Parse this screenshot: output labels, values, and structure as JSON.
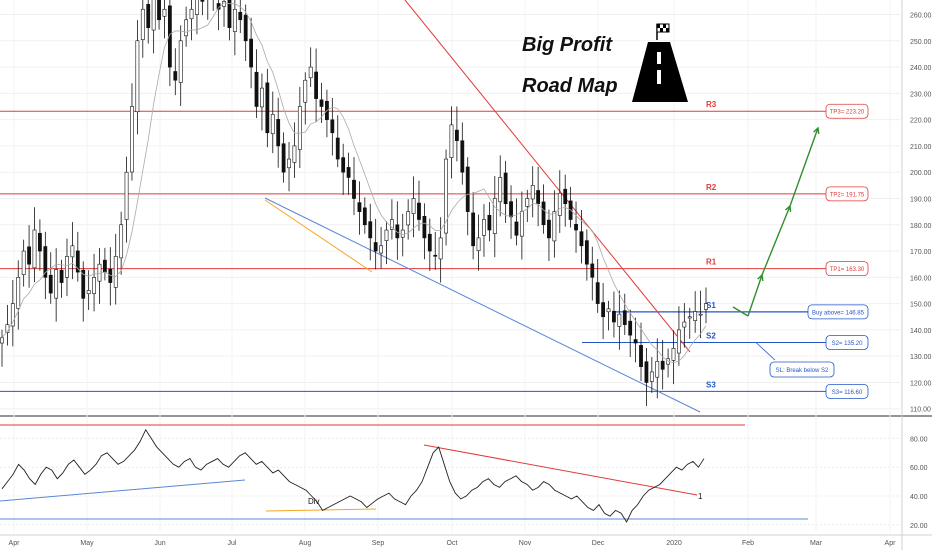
{
  "chart_data": {
    "type": "candlestick",
    "title": "Big Profit",
    "subtitle": "Road Map",
    "x_ticks": [
      "Apr",
      "May",
      "Jun",
      "Jul",
      "Aug",
      "Sep",
      "Oct",
      "Nov",
      "Dec",
      "2020",
      "Feb",
      "Mar",
      "Apr"
    ],
    "price_axis": {
      "ticks": [
        "260.00",
        "250.00",
        "240.00",
        "230.00",
        "220.00",
        "210.00",
        "200.00",
        "190.00",
        "180.00",
        "170.00",
        "160.00",
        "150.00",
        "140.00",
        "130.00",
        "120.00",
        "110.00"
      ],
      "range": [
        108,
        264
      ]
    },
    "rsi_axis": {
      "ticks": [
        "80.00",
        "60.00",
        "40.00",
        "20.00"
      ],
      "range": [
        15,
        90
      ]
    },
    "price_series_close": [
      137,
      142,
      150,
      160,
      170,
      165,
      178,
      170,
      160,
      154,
      163,
      158,
      168,
      172,
      162,
      152,
      155,
      160,
      165,
      162,
      158,
      168,
      180,
      200,
      225,
      250,
      262,
      255,
      268,
      258,
      262,
      240,
      235,
      250,
      258,
      262,
      268,
      265,
      270,
      266,
      262,
      265,
      255,
      262,
      258,
      250,
      240,
      225,
      232,
      215,
      222,
      210,
      200,
      205,
      210,
      225,
      235,
      240,
      228,
      225,
      220,
      215,
      205,
      200,
      198,
      190,
      185,
      180,
      175,
      170,
      172,
      178,
      182,
      175,
      178,
      185,
      190,
      182,
      175,
      170,
      168,
      175,
      205,
      218,
      212,
      200,
      185,
      172,
      175,
      182,
      178,
      190,
      198,
      188,
      183,
      176,
      185,
      190,
      195,
      188,
      180,
      175,
      185,
      192,
      188,
      182,
      178,
      172,
      165,
      160,
      150,
      145,
      148,
      143,
      146,
      142,
      138,
      135,
      126,
      120,
      124,
      128,
      125,
      129,
      133,
      140,
      143,
      145,
      147,
      146,
      150
    ],
    "levels": [
      {
        "label": "R3",
        "price": 223.2,
        "tag": "TP3= 223.20",
        "color": "#e23a3a"
      },
      {
        "label": "R2",
        "price": 191.75,
        "tag": "TP2= 191.75",
        "color": "#e23a3a"
      },
      {
        "label": "R1",
        "price": 163.3,
        "tag": "TP1= 163.30",
        "color": "#e23a3a"
      },
      {
        "label": "S1",
        "price": 146.85,
        "tag": "Buy above= 146.85",
        "color": "#2457c5"
      },
      {
        "label": "S2",
        "price": 135.2,
        "tag": "S2= 135.20",
        "color": "#2457c5"
      },
      {
        "label": "S3",
        "price": 116.6,
        "tag": "S3= 116.60",
        "color": "#2457c5"
      }
    ],
    "annotations": {
      "stop_loss": "SL: Break below S2",
      "divergence": "Div",
      "rsi_marker": "1"
    },
    "rsi_series": [
      45,
      50,
      55,
      62,
      58,
      52,
      48,
      55,
      60,
      58,
      52,
      56,
      62,
      65,
      60,
      55,
      58,
      62,
      68,
      70,
      66,
      62,
      64,
      68,
      72,
      78,
      86,
      80,
      74,
      70,
      66,
      62,
      60,
      64,
      66,
      60,
      58,
      62,
      64,
      66,
      62,
      60,
      64,
      68,
      70,
      66,
      62,
      64,
      60,
      56,
      58,
      54,
      50,
      48,
      46,
      44,
      40,
      36,
      30,
      32,
      34,
      36,
      38,
      40,
      38,
      36,
      32,
      35,
      38,
      40,
      42,
      38,
      36,
      34,
      40,
      44,
      50,
      60,
      70,
      74,
      62,
      50,
      42,
      38,
      40,
      44,
      46,
      50,
      52,
      48,
      46,
      50,
      52,
      54,
      50,
      48,
      44,
      46,
      50,
      48,
      44,
      42,
      40,
      38,
      40,
      36,
      32,
      30,
      34,
      28,
      26,
      30,
      28,
      22,
      30,
      34,
      40,
      44,
      46,
      48,
      52,
      56,
      60,
      58,
      62,
      64,
      60,
      66
    ]
  }
}
